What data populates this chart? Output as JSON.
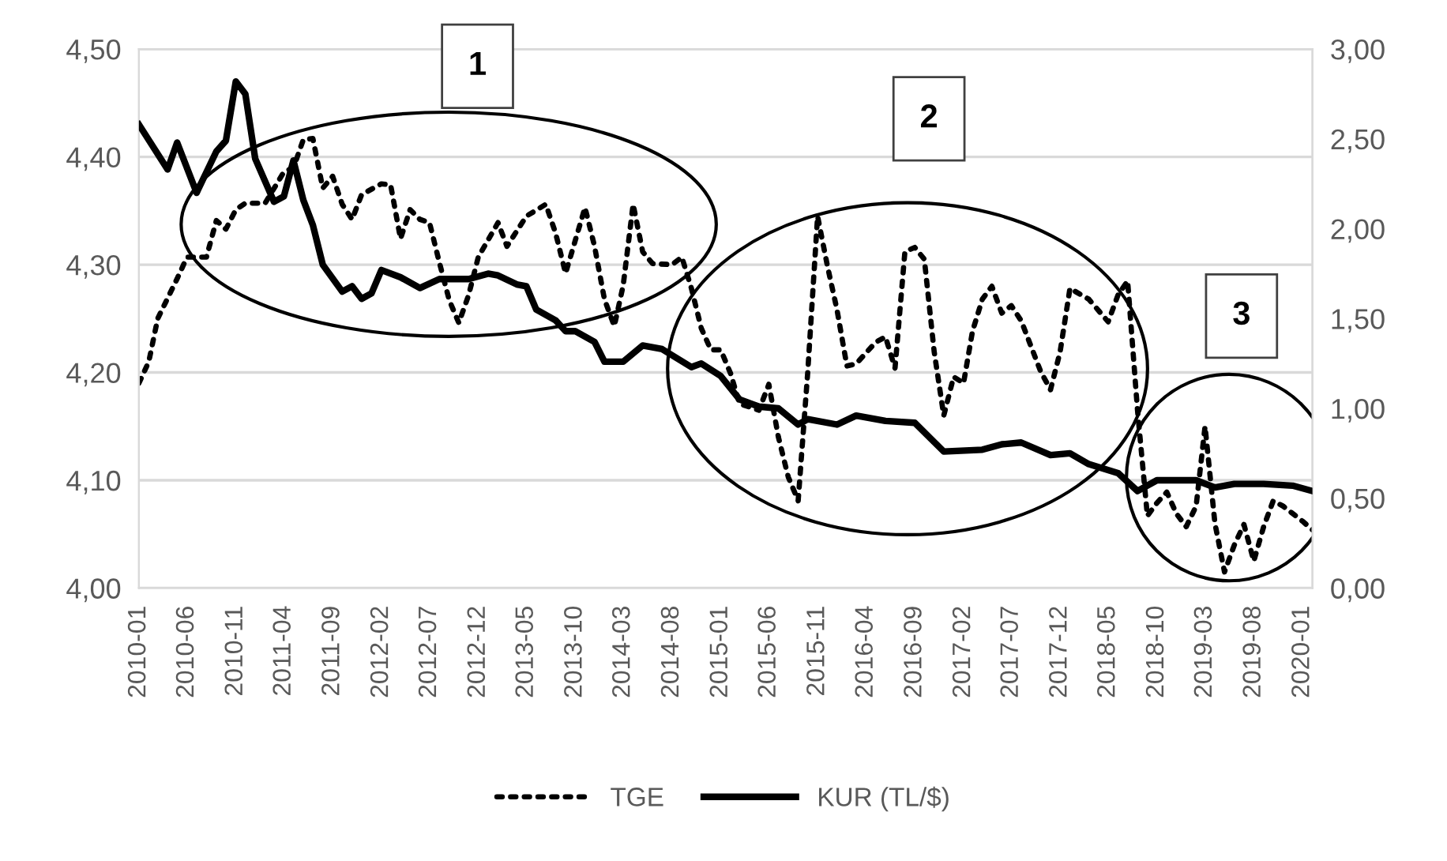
{
  "chart_data": {
    "type": "line",
    "series": [
      {
        "name": "TGE",
        "color": "#000000",
        "line_style": "dotted",
        "x": [
          "2010-01",
          "2010-02",
          "2010-03",
          "2010-05",
          "2010-06",
          "2010-08",
          "2010-09",
          "2010-10",
          "2010-11",
          "2010-12",
          "2011-02",
          "2011-04",
          "2011-05",
          "2011-06",
          "2011-07",
          "2011-08",
          "2011-09",
          "2011-10",
          "2011-11",
          "2011-12",
          "2012-02",
          "2012-03",
          "2012-04",
          "2012-05",
          "2012-06",
          "2012-07",
          "2012-08",
          "2012-09",
          "2012-10",
          "2012-11",
          "2012-12",
          "2013-02",
          "2013-03",
          "2013-05",
          "2013-07",
          "2013-08",
          "2013-09",
          "2013-11",
          "2013-12",
          "2014-01",
          "2014-02",
          "2014-03",
          "2014-04",
          "2014-05",
          "2014-06",
          "2014-08",
          "2014-09",
          "2014-10",
          "2014-11",
          "2014-12",
          "2015-01",
          "2015-02",
          "2015-03",
          "2015-05",
          "2015-06",
          "2015-07",
          "2015-08",
          "2015-09",
          "2015-10",
          "2015-11",
          "2015-12",
          "2016-01",
          "2016-02",
          "2016-03",
          "2016-05",
          "2016-06",
          "2016-07",
          "2016-08",
          "2016-09",
          "2016-10",
          "2016-11",
          "2016-12",
          "2017-01",
          "2017-02",
          "2017-03",
          "2017-04",
          "2017-05",
          "2017-06",
          "2017-07",
          "2017-08",
          "2017-10",
          "2017-11",
          "2017-12",
          "2018-01",
          "2018-03",
          "2018-05",
          "2018-06",
          "2018-07",
          "2018-08",
          "2018-09",
          "2018-10",
          "2018-11",
          "2018-12",
          "2019-01",
          "2019-02",
          "2019-03",
          "2019-04",
          "2019-05",
          "2019-06",
          "2019-07",
          "2019-08",
          "2019-09",
          "2019-10",
          "2019-11",
          "2020-01",
          "2020-02"
        ],
        "values": [
          4.19,
          4.21,
          4.25,
          4.287,
          4.307,
          4.307,
          4.341,
          4.333,
          4.351,
          4.357,
          4.357,
          4.386,
          4.39,
          4.416,
          4.417,
          4.371,
          4.382,
          4.356,
          4.342,
          4.365,
          4.375,
          4.374,
          4.324,
          4.351,
          4.342,
          4.339,
          4.302,
          4.267,
          4.246,
          4.272,
          4.307,
          4.339,
          4.317,
          4.345,
          4.356,
          4.329,
          4.292,
          4.353,
          4.317,
          4.268,
          4.243,
          4.281,
          4.356,
          4.312,
          4.301,
          4.3,
          4.307,
          4.278,
          4.241,
          4.221,
          4.221,
          4.199,
          4.171,
          4.165,
          4.189,
          4.14,
          4.103,
          4.081,
          4.2,
          4.345,
          4.3,
          4.258,
          4.206,
          4.208,
          4.228,
          4.233,
          4.204,
          4.312,
          4.316,
          4.305,
          4.219,
          4.16,
          4.196,
          4.19,
          4.238,
          4.268,
          4.28,
          4.255,
          4.262,
          4.248,
          4.201,
          4.184,
          4.219,
          4.278,
          4.268,
          4.247,
          4.272,
          4.285,
          4.165,
          4.067,
          4.079,
          4.089,
          4.069,
          4.057,
          4.076,
          4.15,
          4.06,
          4.015,
          4.04,
          4.059,
          4.025,
          4.057,
          4.081,
          4.076,
          4.062,
          4.054
        ]
      },
      {
        "name": "KUR (TL/$)",
        "color": "#000000",
        "line_style": "solid",
        "axis": "y2",
        "x": [
          "2010-01",
          "2010-04",
          "2010-05",
          "2010-07",
          "2010-09",
          "2010-10",
          "2010-11",
          "2010-12",
          "2011-01",
          "2011-03",
          "2011-04",
          "2011-05",
          "2011-06",
          "2011-07",
          "2011-08",
          "2011-10",
          "2011-11",
          "2011-12",
          "2012-01",
          "2012-02",
          "2012-04",
          "2012-06",
          "2012-08",
          "2012-11",
          "2013-01",
          "2013-02",
          "2013-04",
          "2013-05",
          "2013-06",
          "2013-08",
          "2013-09",
          "2013-10",
          "2013-12",
          "2014-01",
          "2014-03",
          "2014-05",
          "2014-07",
          "2014-10",
          "2014-11",
          "2015-01",
          "2015-03",
          "2015-05",
          "2015-07",
          "2015-09",
          "2015-10",
          "2016-01",
          "2016-03",
          "2016-06",
          "2016-09",
          "2016-12",
          "2017-04",
          "2017-06",
          "2017-08",
          "2017-11",
          "2018-01",
          "2018-03",
          "2018-06",
          "2018-08",
          "2018-10",
          "2019-01",
          "2019-02",
          "2019-04",
          "2019-06",
          "2019-09",
          "2019-12",
          "2020-02"
        ],
        "values": [
          2.58,
          2.33,
          2.48,
          2.2,
          2.43,
          2.49,
          2.82,
          2.75,
          2.39,
          2.15,
          2.18,
          2.38,
          2.16,
          2.02,
          1.8,
          1.65,
          1.68,
          1.61,
          1.64,
          1.77,
          1.73,
          1.67,
          1.72,
          1.72,
          1.75,
          1.74,
          1.69,
          1.68,
          1.55,
          1.49,
          1.43,
          1.43,
          1.37,
          1.26,
          1.26,
          1.35,
          1.33,
          1.23,
          1.25,
          1.18,
          1.05,
          1.01,
          1.0,
          0.91,
          0.94,
          0.91,
          0.96,
          0.93,
          0.92,
          0.76,
          0.77,
          0.8,
          0.81,
          0.74,
          0.75,
          0.69,
          0.64,
          0.54,
          0.6,
          0.6,
          0.6,
          0.56,
          0.58,
          0.58,
          0.57,
          0.54
        ]
      }
    ],
    "xlim": [
      "2010-01",
      "2020-02"
    ],
    "xticks": [
      "2010-01",
      "2010-06",
      "2010-11",
      "2011-04",
      "2011-09",
      "2012-02",
      "2012-07",
      "2012-12",
      "2013-05",
      "2013-10",
      "2014-03",
      "2014-08",
      "2015-01",
      "2015-06",
      "2015-11",
      "2016-04",
      "2016-09",
      "2017-02",
      "2017-07",
      "2017-12",
      "2018-05",
      "2018-10",
      "2019-03",
      "2019-08",
      "2020-01"
    ],
    "ylim": [
      4.0,
      4.5
    ],
    "yticks": [
      {
        "value": 4.0,
        "label": "4,00"
      },
      {
        "value": 4.1,
        "label": "4,10"
      },
      {
        "value": 4.2,
        "label": "4,20"
      },
      {
        "value": 4.3,
        "label": "4,30"
      },
      {
        "value": 4.4,
        "label": "4,40"
      },
      {
        "value": 4.5,
        "label": "4,50"
      }
    ],
    "y2lim": [
      0,
      3
    ],
    "y2ticks": [
      {
        "value": 0,
        "label": "0,00"
      },
      {
        "value": 0.5,
        "label": "0,50"
      },
      {
        "value": 1,
        "label": "1,00"
      },
      {
        "value": 1.5,
        "label": "1,50"
      },
      {
        "value": 2,
        "label": "2,00"
      },
      {
        "value": 2.5,
        "label": "2,50"
      },
      {
        "value": 3,
        "label": "3,00"
      }
    ],
    "annotations": [
      "1",
      "2",
      "3"
    ],
    "grid": "y",
    "legend": "bottom"
  }
}
